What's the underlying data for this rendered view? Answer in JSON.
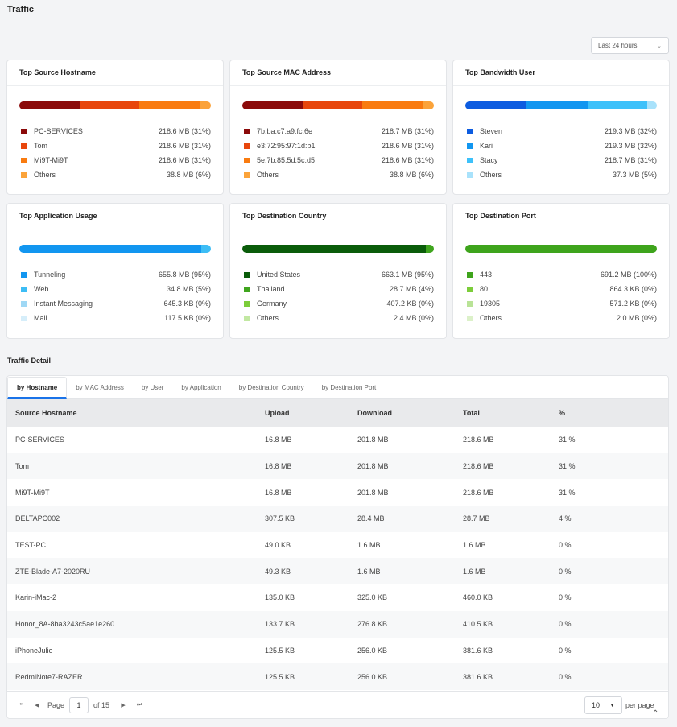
{
  "page": {
    "title": "Traffic",
    "time_range": "Last 24 hours"
  },
  "cards": [
    {
      "title": "Top Source Hostname",
      "segments": [
        {
          "label": "PC-SERVICES",
          "value": "218.6 MB (31%)",
          "percent": 31,
          "color": "#8b0a0a"
        },
        {
          "label": "Tom",
          "value": "218.6 MB (31%)",
          "percent": 31,
          "color": "#e8460c"
        },
        {
          "label": "Mi9T-Mi9T",
          "value": "218.6 MB (31%)",
          "percent": 31,
          "color": "#f97b10"
        },
        {
          "label": "Others",
          "value": "38.8 MB (6%)",
          "percent": 6,
          "color": "#fba33a"
        }
      ]
    },
    {
      "title": "Top Source MAC Address",
      "segments": [
        {
          "label": "7b:ba:c7:a9:fc:6e",
          "value": "218.7 MB (31%)",
          "percent": 31,
          "color": "#8b0a0a"
        },
        {
          "label": "e3:72:95:97:1d:b1",
          "value": "218.6 MB (31%)",
          "percent": 31,
          "color": "#e8460c"
        },
        {
          "label": "5e:7b:85:5d:5c:d5",
          "value": "218.6 MB (31%)",
          "percent": 31,
          "color": "#f97b10"
        },
        {
          "label": "Others",
          "value": "38.8 MB (6%)",
          "percent": 6,
          "color": "#fba33a"
        }
      ]
    },
    {
      "title": "Top Bandwidth User",
      "segments": [
        {
          "label": "Steven",
          "value": "219.3 MB (32%)",
          "percent": 32,
          "color": "#0d5ce0"
        },
        {
          "label": "Kari",
          "value": "219.3 MB (32%)",
          "percent": 32,
          "color": "#1296f0"
        },
        {
          "label": "Stacy",
          "value": "218.7 MB (31%)",
          "percent": 31,
          "color": "#3dc1fa"
        },
        {
          "label": "Others",
          "value": "37.3 MB (5%)",
          "percent": 5,
          "color": "#a9e2fb"
        }
      ]
    },
    {
      "title": "Top Application Usage",
      "segments": [
        {
          "label": "Tunneling",
          "value": "655.8 MB (95%)",
          "percent": 95,
          "color": "#1296f0"
        },
        {
          "label": "Web",
          "value": "34.8 MB (5%)",
          "percent": 5,
          "color": "#3dbdf5"
        },
        {
          "label": "Instant Messaging",
          "value": "645.3 KB (0%)",
          "percent": 0,
          "color": "#9fd8f5"
        },
        {
          "label": "Mail",
          "value": "117.5 KB (0%)",
          "percent": 0,
          "color": "#d6eefa"
        }
      ]
    },
    {
      "title": "Top Destination Country",
      "segments": [
        {
          "label": "United States",
          "value": "663.1 MB (95%)",
          "percent": 95,
          "color": "#0a5c0a"
        },
        {
          "label": "Thailand",
          "value": "28.7 MB (4%)",
          "percent": 4,
          "color": "#3fa51e"
        },
        {
          "label": "Germany",
          "value": "407.2 KB (0%)",
          "percent": 0,
          "color": "#7ccd3a"
        },
        {
          "label": "Others",
          "value": "2.4 MB (0%)",
          "percent": 0,
          "color": "#c2e8a2"
        }
      ]
    },
    {
      "title": "Top Destination Port",
      "segments": [
        {
          "label": "443",
          "value": "691.2 MB (100%)",
          "percent": 100,
          "color": "#3ea41c"
        },
        {
          "label": "80",
          "value": "864.3 KB (0%)",
          "percent": 0,
          "color": "#7ccd3a"
        },
        {
          "label": "19305",
          "value": "571.2 KB (0%)",
          "percent": 0,
          "color": "#b9e397"
        },
        {
          "label": "Others",
          "value": "2.0 MB (0%)",
          "percent": 0,
          "color": "#dcf1c9"
        }
      ]
    }
  ],
  "detail": {
    "title": "Traffic Detail",
    "tabs": [
      "by Hostname",
      "by MAC Address",
      "by User",
      "by Application",
      "by Destination Country",
      "by Destination Port"
    ],
    "active_tab": 0,
    "columns": [
      "Source Hostname",
      "Upload",
      "Download",
      "Total",
      "%"
    ],
    "rows": [
      [
        "PC-SERVICES",
        "16.8 MB",
        "201.8 MB",
        "218.6 MB",
        "31 %"
      ],
      [
        "Tom",
        "16.8 MB",
        "201.8 MB",
        "218.6 MB",
        "31 %"
      ],
      [
        "Mi9T-Mi9T",
        "16.8 MB",
        "201.8 MB",
        "218.6 MB",
        "31 %"
      ],
      [
        "DELTAPC002",
        "307.5 KB",
        "28.4 MB",
        "28.7 MB",
        "4 %"
      ],
      [
        "TEST-PC",
        "49.0 KB",
        "1.6 MB",
        "1.6 MB",
        "0 %"
      ],
      [
        "ZTE-Blade-A7-2020RU",
        "49.3 KB",
        "1.6 MB",
        "1.6 MB",
        "0 %"
      ],
      [
        "Karin-iMac-2",
        "135.0 KB",
        "325.0 KB",
        "460.0 KB",
        "0 %"
      ],
      [
        "Honor_8A-8ba3243c5ae1e260",
        "133.7 KB",
        "276.8 KB",
        "410.5 KB",
        "0 %"
      ],
      [
        "iPhoneJulie",
        "125.5 KB",
        "256.0 KB",
        "381.6 KB",
        "0 %"
      ],
      [
        "RedmiNote7-RAZER",
        "125.5 KB",
        "256.0 KB",
        "381.6 KB",
        "0 %"
      ]
    ],
    "pager": {
      "page_label": "Page",
      "page": "1",
      "of_label": "of 15",
      "per_page": "10",
      "per_page_label": "per page"
    }
  }
}
